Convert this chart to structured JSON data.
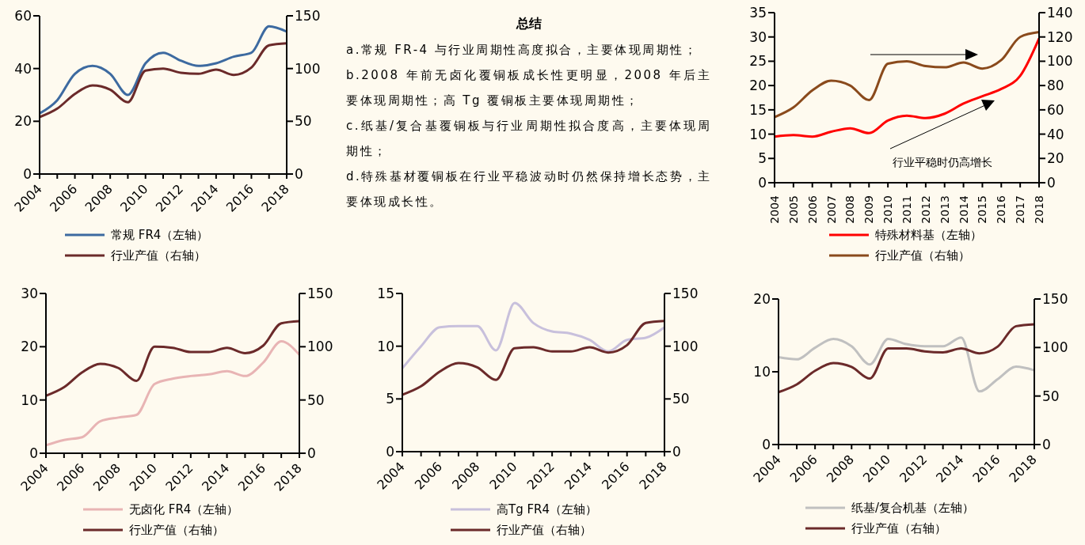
{
  "chart_data": [
    {
      "type": "line",
      "categories": [
        "2004",
        null,
        "2006",
        null,
        "2008",
        null,
        "2010",
        null,
        "2012",
        null,
        "2014",
        null,
        "2016",
        null,
        "2018"
      ],
      "ylim": [
        0,
        60
      ],
      "yticks": [
        0,
        20,
        40,
        60
      ],
      "y2lim": [
        0,
        150
      ],
      "y2ticks": [
        0,
        50,
        100,
        150
      ],
      "legend": "bottom",
      "series": [
        {
          "name": "常规 FR4（左轴）",
          "color": "#3d6aa0",
          "values": [
            23,
            28,
            38,
            41,
            38,
            30,
            42,
            46,
            43,
            41,
            42,
            44.5,
            46,
            56,
            54
          ]
        },
        {
          "name": "行业产值（右轴）",
          "color": "#6b2a2a",
          "axis": "y2",
          "values": [
            54,
            62,
            76,
            84,
            80,
            68,
            98,
            100,
            96,
            95,
            99,
            94,
            101,
            122,
            124
          ]
        }
      ]
    },
    {
      "type": "other",
      "title": "总结",
      "annotations": [
        "a.常规 FR-4 与行业周期性高度拟合，主要体现周期性；",
        "b.2008 年前无卤化覆铜板成长性更明显，2008 年后主要体现周期性；高 Tg 覆铜板主要体现周期性；",
        "c.纸基/复合基覆铜板与行业周期性拟合度高，主要体现周期性；",
        "d.特殊基材覆铜板在行业平稳波动时仍然保持增长态势，主要体现成长性。"
      ]
    },
    {
      "type": "line",
      "categories": [
        "2004",
        "2005",
        "2006",
        "2007",
        "2008",
        "2009",
        "2010",
        "2011",
        "2012",
        "2013",
        "2014",
        "2015",
        "2016",
        "2017",
        "2018"
      ],
      "ylim": [
        0,
        35
      ],
      "yticks": [
        0,
        5,
        10,
        15,
        20,
        25,
        30,
        35
      ],
      "y2lim": [
        0,
        140
      ],
      "y2ticks": [
        0,
        20,
        40,
        60,
        80,
        100,
        120,
        140
      ],
      "legend": "bottom",
      "annotations": [
        "行业平稳时仍高增长"
      ],
      "series": [
        {
          "name": "特殊材料基（左轴）",
          "color": "#ff0000",
          "values": [
            9.5,
            9.8,
            9.5,
            10.5,
            11.2,
            10.2,
            12.8,
            13.8,
            13.3,
            14.2,
            16.3,
            17.8,
            19.3,
            22,
            29.7
          ]
        },
        {
          "name": "行业产值（右轴）",
          "color": "#8a4a1c",
          "axis": "y2",
          "values": [
            54,
            62,
            76,
            84,
            80,
            68,
            98,
            100,
            96,
            95,
            99,
            94,
            101,
            120,
            124
          ]
        }
      ]
    },
    {
      "type": "line",
      "categories": [
        "2004",
        null,
        "2006",
        null,
        "2008",
        null,
        "2010",
        null,
        "2012",
        null,
        "2014",
        null,
        "2016",
        null,
        "2018"
      ],
      "ylim": [
        0,
        30
      ],
      "yticks": [
        0,
        10,
        20,
        30
      ],
      "y2lim": [
        0,
        150
      ],
      "y2ticks": [
        0,
        50,
        100,
        150
      ],
      "legend": "bottom",
      "series": [
        {
          "name": "无卤化 FR4（左轴）",
          "color": "#e8b4b4",
          "values": [
            1.5,
            2.5,
            3,
            6,
            6.7,
            7.2,
            13,
            14,
            14.5,
            14.8,
            15.4,
            14.5,
            17,
            21,
            18.5
          ]
        },
        {
          "name": "行业产值（右轴）",
          "color": "#6b2a2a",
          "axis": "y2",
          "values": [
            54,
            62,
            76,
            84,
            80,
            68,
            100,
            99,
            95,
            95,
            99,
            94,
            101,
            122,
            124
          ]
        }
      ]
    },
    {
      "type": "line",
      "categories": [
        "2004",
        null,
        "2006",
        null,
        "2008",
        null,
        "2010",
        null,
        "2012",
        null,
        "2014",
        null,
        "2016",
        null,
        "2018"
      ],
      "ylim": [
        0,
        15
      ],
      "yticks": [
        0,
        5,
        10,
        15
      ],
      "y2lim": [
        0,
        150
      ],
      "y2ticks": [
        0,
        50,
        100,
        150
      ],
      "legend": "bottom",
      "series": [
        {
          "name": "高Tg FR4（左轴）",
          "color": "#c8c0dc",
          "values": [
            7.9,
            10,
            11.8,
            11.9,
            11.9,
            9.6,
            14.1,
            12.2,
            11.4,
            11.2,
            10.6,
            9.5,
            10.6,
            10.8,
            11.8
          ]
        },
        {
          "name": "行业产值（右轴）",
          "color": "#6b2a2a",
          "axis": "y2",
          "values": [
            54,
            62,
            76,
            84,
            80,
            68,
            98,
            99,
            95,
            95,
            99,
            94,
            101,
            122,
            124
          ]
        }
      ]
    },
    {
      "type": "line",
      "categories": [
        "2004",
        null,
        "2006",
        null,
        "2008",
        null,
        "2010",
        null,
        "2012",
        null,
        "2014",
        null,
        "2016",
        null,
        "2018"
      ],
      "ylim": [
        0,
        20
      ],
      "yticks": [
        0,
        10,
        20
      ],
      "y2lim": [
        0,
        150
      ],
      "y2ticks": [
        0,
        50,
        100,
        150
      ],
      "legend": "bottom",
      "series": [
        {
          "name": "纸基/复合机基（左轴）",
          "color": "#c0c0c0",
          "values": [
            12,
            11.7,
            13.3,
            14.5,
            13.5,
            11,
            14.5,
            13.8,
            13.5,
            13.5,
            14.7,
            7.3,
            9,
            10.7,
            10.2
          ]
        },
        {
          "name": "行业产值（右轴）",
          "color": "#6b2a2a",
          "axis": "y2",
          "values": [
            54,
            62,
            76,
            84,
            80,
            68,
            99,
            99,
            96,
            95,
            99,
            94,
            101,
            122,
            124
          ]
        }
      ]
    }
  ]
}
